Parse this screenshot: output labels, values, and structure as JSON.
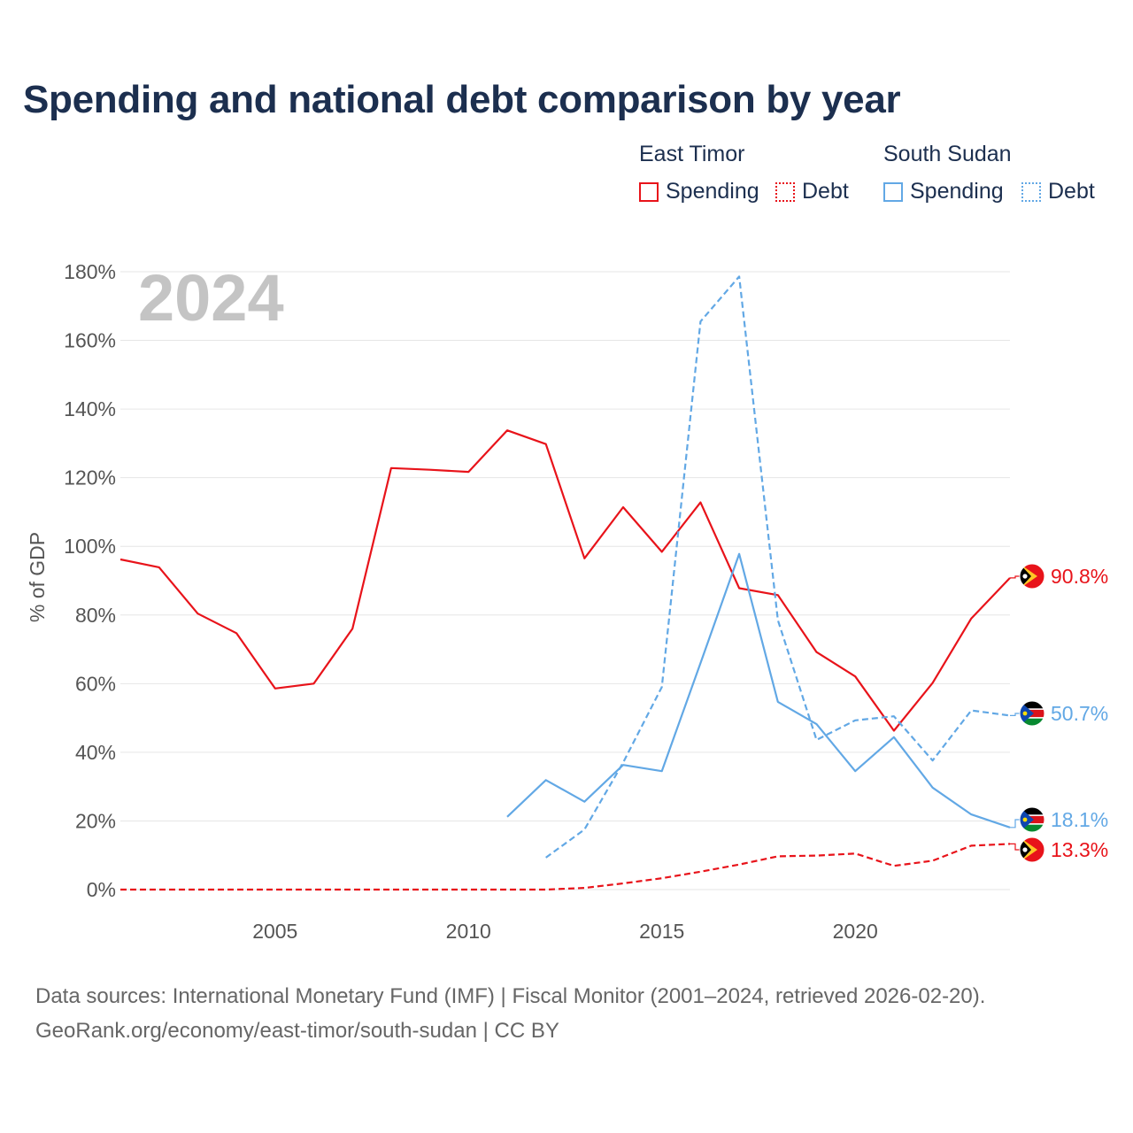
{
  "title": "Spending and national debt comparison by year",
  "legend": {
    "groups": [
      {
        "country": "East Timor",
        "items": [
          {
            "label": "Spending",
            "color": "#e8131a",
            "style": "solid"
          },
          {
            "label": "Debt",
            "color": "#e8131a",
            "style": "dotted"
          }
        ]
      },
      {
        "country": "South Sudan",
        "items": [
          {
            "label": "Spending",
            "color": "#62a8e5",
            "style": "solid"
          },
          {
            "label": "Debt",
            "color": "#62a8e5",
            "style": "dotted"
          }
        ]
      }
    ]
  },
  "chart_data": {
    "type": "line",
    "title": "Spending and national debt comparison by year",
    "ylabel": "% of GDP",
    "xlabel": "",
    "year_label": "2024",
    "ylim": [
      0,
      180
    ],
    "xlim": [
      2001,
      2024
    ],
    "yticks": [
      0,
      20,
      40,
      60,
      80,
      100,
      120,
      140,
      160,
      180
    ],
    "ytick_labels": [
      "0%",
      "20%",
      "40%",
      "60%",
      "80%",
      "100%",
      "120%",
      "140%",
      "160%",
      "180%"
    ],
    "xticks": [
      2005,
      2010,
      2015,
      2020
    ],
    "xtick_labels": [
      "2005",
      "2010",
      "2015",
      "2020"
    ],
    "grid": true,
    "series": [
      {
        "name": "East Timor Spending",
        "country": "East Timor",
        "kind": "Spending",
        "color": "#e8131a",
        "dash": "solid",
        "x": [
          2001,
          2002,
          2003,
          2004,
          2005,
          2006,
          2007,
          2008,
          2009,
          2010,
          2011,
          2012,
          2013,
          2014,
          2015,
          2016,
          2017,
          2018,
          2019,
          2020,
          2021,
          2022,
          2023,
          2024
        ],
        "values": [
          96.2,
          93.9,
          80.4,
          74.7,
          58.6,
          60.0,
          76.0,
          122.8,
          122.3,
          121.7,
          133.8,
          129.8,
          96.5,
          111.4,
          98.4,
          112.8,
          87.8,
          85.8,
          69.2,
          62.1,
          46.3,
          60.2,
          79.0,
          90.8
        ],
        "end_label": "90.8%"
      },
      {
        "name": "East Timor Debt",
        "country": "East Timor",
        "kind": "Debt",
        "color": "#e8131a",
        "dash": "dashed",
        "x": [
          2001,
          2002,
          2003,
          2004,
          2005,
          2006,
          2007,
          2008,
          2009,
          2010,
          2011,
          2012,
          2013,
          2014,
          2015,
          2016,
          2017,
          2018,
          2019,
          2020,
          2021,
          2022,
          2023,
          2024
        ],
        "values": [
          0,
          0,
          0,
          0,
          0,
          0,
          0,
          0,
          0,
          0,
          0,
          0,
          0.5,
          1.8,
          3.3,
          5.2,
          7.3,
          9.7,
          9.9,
          10.5,
          6.9,
          8.4,
          12.8,
          13.3
        ],
        "end_label": "13.3%"
      },
      {
        "name": "South Sudan Spending",
        "country": "South Sudan",
        "kind": "Spending",
        "color": "#62a8e5",
        "dash": "solid",
        "x": [
          2011,
          2012,
          2013,
          2014,
          2015,
          2016,
          2017,
          2018,
          2019,
          2020,
          2021,
          2022,
          2023,
          2024
        ],
        "values": [
          21.2,
          31.9,
          25.6,
          36.3,
          34.5,
          66.0,
          97.8,
          54.7,
          48.2,
          34.5,
          44.4,
          29.7,
          21.9,
          18.1
        ],
        "end_label": "18.1%"
      },
      {
        "name": "South Sudan Debt",
        "country": "South Sudan",
        "kind": "Debt",
        "color": "#62a8e5",
        "dash": "dashed",
        "x": [
          2012,
          2013,
          2014,
          2015,
          2016,
          2017,
          2018,
          2019,
          2020,
          2021,
          2022,
          2023,
          2024
        ],
        "values": [
          9.3,
          17.5,
          37.0,
          59.0,
          165.5,
          178.6,
          78.5,
          43.6,
          49.3,
          50.5,
          37.6,
          52.2,
          50.7
        ],
        "end_label": "50.7%"
      }
    ]
  },
  "footer": {
    "line1": "Data sources: International Monetary Fund (IMF) | Fiscal Monitor (2001–2024, retrieved 2026-02-20).",
    "line2": "GeoRank.org/economy/east-timor/south-sudan | CC BY"
  }
}
